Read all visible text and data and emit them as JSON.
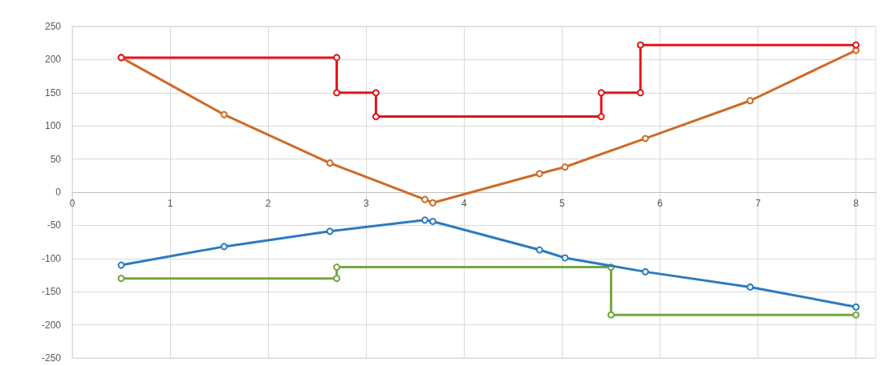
{
  "chart_data": {
    "type": "line",
    "marker": "circle",
    "grid": true,
    "xlim": [
      0,
      8.2
    ],
    "xticks": [
      0,
      1,
      2,
      3,
      4,
      5,
      6,
      7,
      8
    ],
    "ylim": [
      -250,
      250
    ],
    "yticks": [
      -250,
      -200,
      -150,
      -100,
      -50,
      0,
      50,
      100,
      150,
      200,
      250
    ],
    "series": [
      {
        "color": "#e0141c",
        "x": [
          0.5,
          2.7,
          2.7,
          3.1,
          3.1,
          5.4,
          5.4,
          5.8,
          5.8,
          8
        ],
        "values": [
          203,
          203,
          150,
          150,
          114,
          114,
          150,
          150,
          222,
          222
        ]
      },
      {
        "color": "#d06a25",
        "x": [
          0.5,
          1.55,
          2.63,
          3.6,
          3.68,
          4.77,
          5.03,
          5.85,
          6.92,
          8
        ],
        "values": [
          203,
          117,
          44,
          -11,
          -16,
          28,
          38,
          81,
          138,
          214
        ]
      },
      {
        "color": "#2a7bc1",
        "x": [
          0.5,
          1.55,
          2.63,
          3.6,
          3.68,
          4.77,
          5.03,
          5.85,
          6.92,
          8
        ],
        "values": [
          -110,
          -82,
          -59,
          -42,
          -44,
          -87,
          -99,
          -120,
          -143,
          -173
        ]
      },
      {
        "color": "#70a83f",
        "x": [
          0.5,
          2.7,
          2.7,
          5.5,
          5.5,
          8
        ],
        "values": [
          -130,
          -130,
          -113,
          -113,
          -185,
          -185
        ]
      }
    ]
  }
}
